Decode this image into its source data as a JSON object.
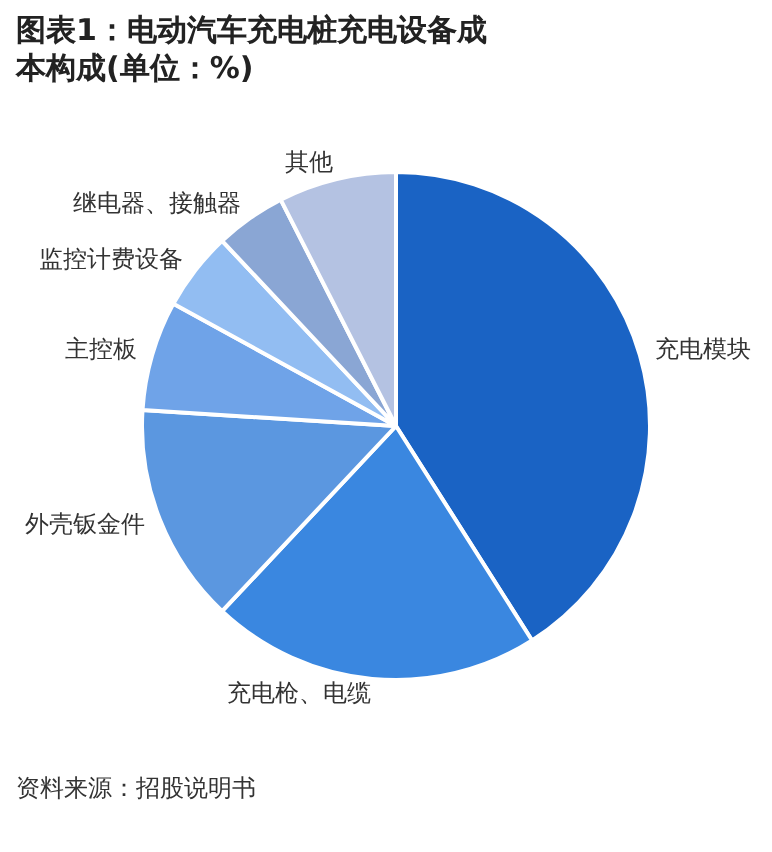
{
  "chart_data": {
    "type": "pie",
    "title": "图表1：电动汽车充电桩充电设备成本构成(单位：%)",
    "categories": [
      "充电模块",
      "充电枪、电缆",
      "外壳钣金件",
      "主控板",
      "监控计费设备",
      "继电器、接触器",
      "其他"
    ],
    "values": [
      41,
      21,
      14,
      7,
      5,
      4.5,
      7.5
    ],
    "colors": [
      "#1a63c4",
      "#3a87e0",
      "#5b97e0",
      "#6fa3e8",
      "#92bdf2",
      "#8aa6d4",
      "#b4c2e2"
    ],
    "legend": false,
    "annotations": [
      "资料来源：招股说明书"
    ]
  }
}
